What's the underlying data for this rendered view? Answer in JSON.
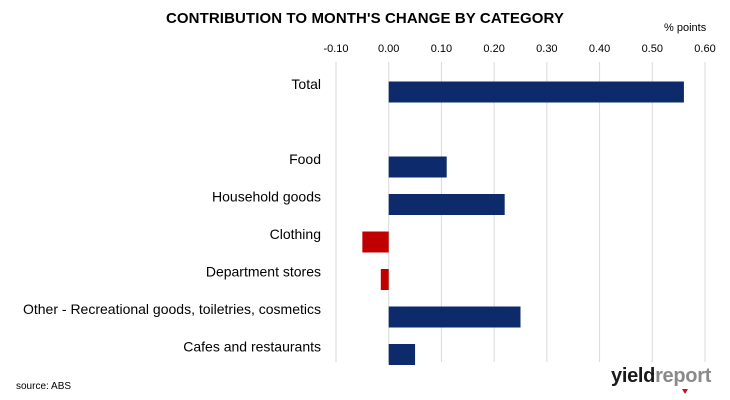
{
  "chart_data": {
    "type": "bar",
    "orientation": "horizontal",
    "title": "CONTRIBUTION TO MONTH'S CHANGE BY CATEGORY",
    "unit_label": "% points",
    "x_axis_position": "top",
    "xlim": [
      -0.1,
      0.6
    ],
    "x_ticks": [
      -0.1,
      0.0,
      0.1,
      0.2,
      0.3,
      0.4,
      0.5,
      0.6
    ],
    "x_tick_labels": [
      "-0.10",
      "0.00",
      "0.10",
      "0.20",
      "0.30",
      "0.40",
      "0.50",
      "0.60"
    ],
    "grid": "vertical",
    "categories": [
      "Total",
      "",
      "Food",
      "Household goods",
      "Clothing",
      "Department stores",
      "Other - Recreational goods, toiletries, cosmetics",
      "Cafes and restaurants"
    ],
    "values": [
      0.56,
      null,
      0.11,
      0.22,
      -0.05,
      -0.015,
      0.25,
      0.05
    ],
    "colors": {
      "positive": "#0d2a6b",
      "negative": "#c00000",
      "grid": "#d9d9d9"
    }
  },
  "source": "source: ABS",
  "logo": {
    "part1": "yield",
    "part2": "report"
  }
}
